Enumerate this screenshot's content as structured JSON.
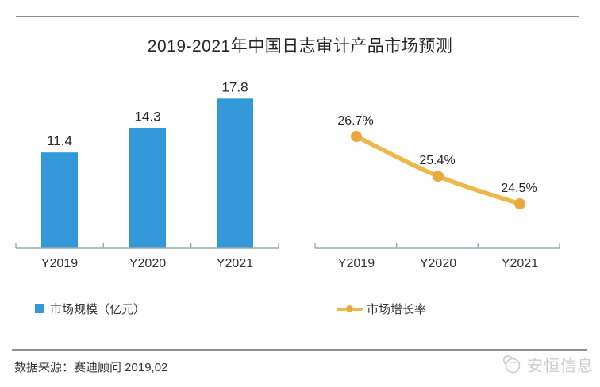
{
  "title": "2019-2021年中国日志审计产品市场预测",
  "source_note": "数据来源：赛迪顾问   2019,02",
  "watermark": {
    "brand": "安恒信息",
    "icon": "dbapp-swirl-logo-icon"
  },
  "colors": {
    "bar": "#3398d8",
    "line": "#edb74a",
    "marker": "#e9a93c",
    "axis": "#9aa8b2",
    "text": "#333333",
    "rule": "#8f8f8f",
    "watermark": "#cccccc"
  },
  "legend": [
    {
      "swatch": "bar-square-swatch",
      "label": "市场规模（亿元）"
    },
    {
      "swatch": "line-dot-swatch",
      "label": "市场增长率"
    }
  ],
  "chart_data": [
    {
      "type": "bar",
      "title": "市场规模（亿元）",
      "categories": [
        "Y2019",
        "Y2020",
        "Y2021"
      ],
      "values": [
        11.4,
        14.3,
        17.8
      ],
      "data_labels": [
        "11.4",
        "14.3",
        "17.8"
      ],
      "xlabel": "",
      "ylabel": "亿元",
      "ylim": [
        0,
        21
      ],
      "grid": false,
      "legend_position": "bottom"
    },
    {
      "type": "line",
      "title": "市场增长率",
      "categories": [
        "Y2019",
        "Y2020",
        "Y2021"
      ],
      "values": [
        26.7,
        25.4,
        24.5
      ],
      "data_labels": [
        "26.7%",
        "25.4%",
        "24.5%"
      ],
      "xlabel": "",
      "ylabel": "",
      "grid": false,
      "legend_position": "bottom"
    }
  ]
}
